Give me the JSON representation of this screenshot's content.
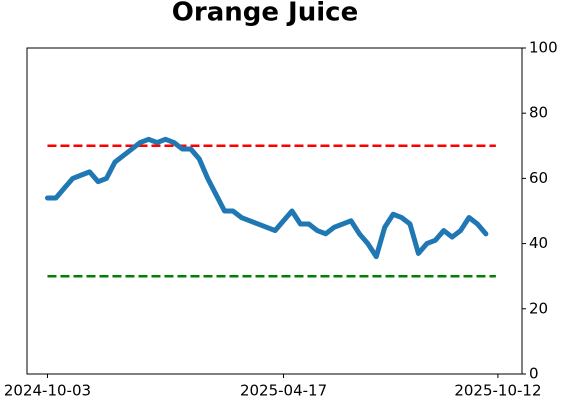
{
  "chart_data": {
    "type": "line",
    "title": "Orange Juice",
    "x": [
      "2024-10-03",
      "2024-10-10",
      "2024-10-17",
      "2024-10-24",
      "2024-10-31",
      "2024-11-07",
      "2024-11-14",
      "2024-11-21",
      "2024-11-28",
      "2024-12-05",
      "2024-12-12",
      "2024-12-19",
      "2024-12-26",
      "2025-01-02",
      "2025-01-09",
      "2025-01-16",
      "2025-01-23",
      "2025-01-30",
      "2025-02-06",
      "2025-02-13",
      "2025-02-20",
      "2025-02-27",
      "2025-03-06",
      "2025-03-13",
      "2025-03-20",
      "2025-03-27",
      "2025-04-03",
      "2025-04-10",
      "2025-04-17",
      "2025-04-24",
      "2025-05-01",
      "2025-05-08",
      "2025-05-15",
      "2025-05-22",
      "2025-05-29",
      "2025-06-05",
      "2025-06-12",
      "2025-06-19",
      "2025-06-26",
      "2025-07-03",
      "2025-07-10",
      "2025-07-17",
      "2025-07-24",
      "2025-07-31",
      "2025-08-07",
      "2025-08-14",
      "2025-08-21",
      "2025-08-28",
      "2025-09-04",
      "2025-09-11",
      "2025-09-18",
      "2025-09-25",
      "2025-10-02"
    ],
    "series": [
      {
        "color": "#1f77b4",
        "values": [
          54,
          54,
          57,
          60,
          61,
          62,
          59,
          60,
          65,
          67,
          69,
          71,
          72,
          71,
          72,
          71,
          69,
          69,
          66,
          60,
          55,
          50,
          50,
          48,
          47,
          46,
          45,
          44,
          47,
          50,
          46,
          46,
          44,
          43,
          45,
          46,
          47,
          43,
          40,
          36,
          45,
          49,
          48,
          46,
          37,
          40,
          41,
          44,
          42,
          44,
          48,
          46,
          43
        ]
      }
    ],
    "hlines": [
      {
        "value": 70,
        "color": "#ff0000"
      },
      {
        "value": 30,
        "color": "#008000"
      }
    ],
    "xlim": [
      "2024-09-16",
      "2025-11-01"
    ],
    "xticks": [
      "2024-10-03",
      "2025-04-17",
      "2025-10-12"
    ],
    "ylim": [
      0,
      100
    ],
    "yticks": [
      0,
      20,
      40,
      60,
      80,
      100
    ],
    "y_axis_side": "right"
  }
}
